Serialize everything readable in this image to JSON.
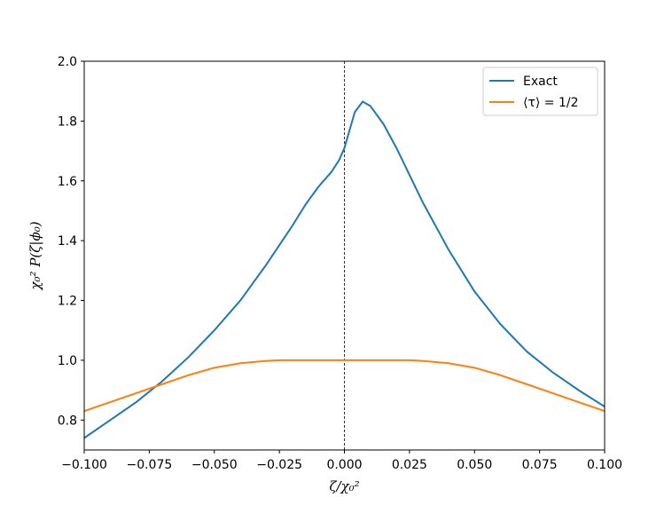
{
  "chart_data": {
    "type": "line",
    "title": "",
    "xlabel": "ζ/χ₀²",
    "ylabel": "χ₀² P(ζ|ϕ₀)",
    "xlim": [
      -0.1,
      0.1
    ],
    "ylim": [
      0.7,
      2.0
    ],
    "xticks": [
      -0.1,
      -0.075,
      -0.05,
      -0.025,
      0.0,
      0.025,
      0.05,
      0.075,
      0.1
    ],
    "xtick_labels": [
      "−0.100",
      "−0.075",
      "−0.050",
      "−0.025",
      "0.000",
      "0.025",
      "0.050",
      "0.075",
      "0.100"
    ],
    "yticks": [
      0.8,
      1.0,
      1.2,
      1.4,
      1.6,
      1.8,
      2.0
    ],
    "ytick_labels": [
      "0.8",
      "1.0",
      "1.2",
      "1.4",
      "1.6",
      "1.8",
      "2.0"
    ],
    "grid": false,
    "legend_position": "top-right",
    "vline": {
      "x": 0.0,
      "style": "dashed",
      "color": "#000000"
    },
    "series": [
      {
        "name": "Exact",
        "color": "#1f77b4",
        "x": [
          -0.1,
          -0.09,
          -0.08,
          -0.07,
          -0.06,
          -0.05,
          -0.04,
          -0.03,
          -0.02,
          -0.015,
          -0.01,
          -0.005,
          -0.002,
          0.0,
          0.002,
          0.004,
          0.007,
          0.01,
          0.015,
          0.02,
          0.025,
          0.03,
          0.04,
          0.05,
          0.06,
          0.07,
          0.08,
          0.09,
          0.1
        ],
        "y": [
          0.74,
          0.8,
          0.86,
          0.93,
          1.01,
          1.1,
          1.2,
          1.32,
          1.45,
          1.52,
          1.58,
          1.63,
          1.67,
          1.71,
          1.77,
          1.83,
          1.865,
          1.85,
          1.79,
          1.71,
          1.62,
          1.53,
          1.37,
          1.23,
          1.12,
          1.03,
          0.96,
          0.9,
          0.845
        ]
      },
      {
        "name": "⟨τ⟩ = 1/2",
        "color": "#ff7f0e",
        "x": [
          -0.1,
          -0.09,
          -0.08,
          -0.07,
          -0.06,
          -0.05,
          -0.04,
          -0.03,
          -0.025,
          -0.02,
          -0.01,
          0.0,
          0.01,
          0.02,
          0.025,
          0.03,
          0.04,
          0.05,
          0.06,
          0.07,
          0.08,
          0.09,
          0.1
        ],
        "y": [
          0.83,
          0.86,
          0.89,
          0.92,
          0.95,
          0.975,
          0.99,
          0.998,
          1.0,
          1.0,
          1.0,
          1.0,
          1.0,
          1.0,
          1.0,
          0.998,
          0.99,
          0.975,
          0.95,
          0.92,
          0.89,
          0.86,
          0.83
        ]
      }
    ]
  }
}
